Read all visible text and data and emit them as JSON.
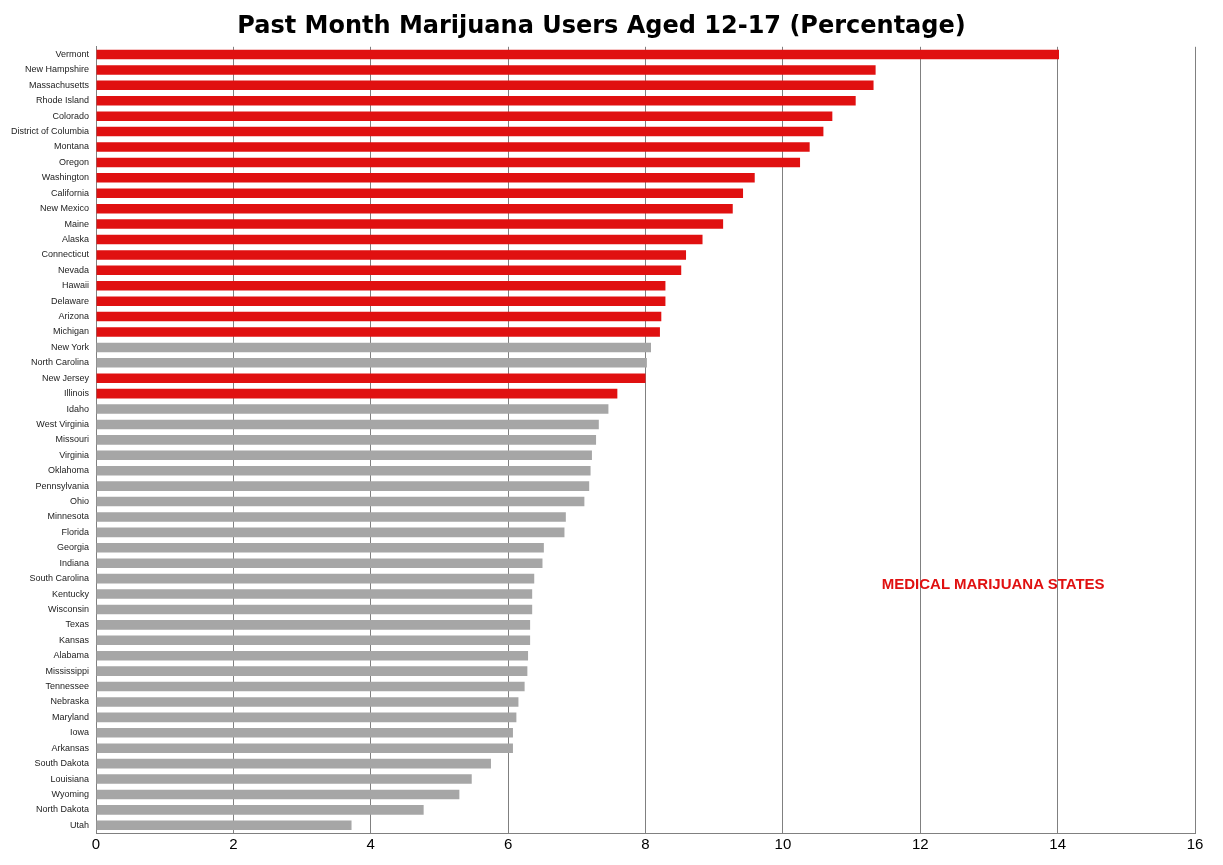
{
  "chart_data": {
    "type": "bar",
    "orientation": "horizontal",
    "title": "Past Month Marijuana Users Aged 12-17 (Percentage)",
    "categories": [
      "Vermont",
      "New Hampshire",
      "Massachusetts",
      "Rhode Island",
      "Colorado",
      "District of Columbia",
      "Montana",
      "Oregon",
      "Washington",
      "California",
      "New Mexico",
      "Maine",
      "Alaska",
      "Connecticut",
      "Nevada",
      "Hawaii",
      "Delaware",
      "Arizona",
      "Michigan",
      "New York",
      "North Carolina",
      "New Jersey",
      "Illinois",
      "Idaho",
      "West Virginia",
      "Missouri",
      "Virginia",
      "Oklahoma",
      "Pennsylvania",
      "Ohio",
      "Minnesota",
      "Florida",
      "Georgia",
      "Indiana",
      "South Carolina",
      "Kentucky",
      "Wisconsin",
      "Texas",
      "Kansas",
      "Alabama",
      "Mississippi",
      "Tennessee",
      "Nebraska",
      "Maryland",
      "Iowa",
      "Arkansas",
      "South Dakota",
      "Louisiana",
      "Wyoming",
      "North Dakota",
      "Utah"
    ],
    "values": [
      14.02,
      11.35,
      11.32,
      11.06,
      10.72,
      10.59,
      10.39,
      10.25,
      9.59,
      9.42,
      9.27,
      9.13,
      8.83,
      8.59,
      8.52,
      8.29,
      8.29,
      8.23,
      8.21,
      8.08,
      8.02,
      8.0,
      7.59,
      7.46,
      7.32,
      7.28,
      7.22,
      7.2,
      7.18,
      7.11,
      6.84,
      6.82,
      6.52,
      6.5,
      6.38,
      6.35,
      6.35,
      6.32,
      6.32,
      6.29,
      6.28,
      6.24,
      6.15,
      6.12,
      6.07,
      6.07,
      5.75,
      5.47,
      5.29,
      4.77,
      3.72
    ],
    "colors": [
      "#e01010",
      "#e01010",
      "#e01010",
      "#e01010",
      "#e01010",
      "#e01010",
      "#e01010",
      "#e01010",
      "#e01010",
      "#e01010",
      "#e01010",
      "#e01010",
      "#e01010",
      "#e01010",
      "#e01010",
      "#e01010",
      "#e01010",
      "#e01010",
      "#e01010",
      "#a6a6a6",
      "#a6a6a6",
      "#e01010",
      "#e01010",
      "#a6a6a6",
      "#a6a6a6",
      "#a6a6a6",
      "#a6a6a6",
      "#a6a6a6",
      "#a6a6a6",
      "#a6a6a6",
      "#a6a6a6",
      "#a6a6a6",
      "#a6a6a6",
      "#a6a6a6",
      "#a6a6a6",
      "#a6a6a6",
      "#a6a6a6",
      "#a6a6a6",
      "#a6a6a6",
      "#a6a6a6",
      "#a6a6a6",
      "#a6a6a6",
      "#a6a6a6",
      "#a6a6a6",
      "#a6a6a6",
      "#a6a6a6",
      "#a6a6a6",
      "#a6a6a6",
      "#a6a6a6",
      "#a6a6a6",
      "#a6a6a6"
    ],
    "annotations": [
      "MEDICAL MARIJUANA STATES"
    ],
    "xlim": [
      0,
      16
    ],
    "xticks": [
      0,
      2,
      4,
      6,
      8,
      10,
      12,
      14,
      16
    ],
    "grid": "x",
    "legend": false
  }
}
